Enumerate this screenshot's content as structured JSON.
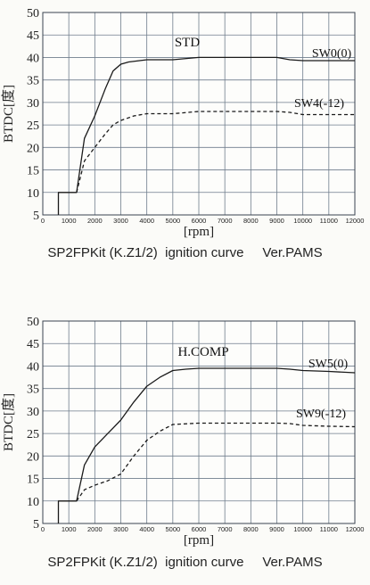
{
  "chart_data": [
    {
      "type": "line",
      "title": "STD",
      "xlabel": "[rpm]",
      "ylabel": "BTDC[度]",
      "xlim": [
        0,
        12000
      ],
      "ylim": [
        5,
        50
      ],
      "xticks": [
        "0",
        "1000",
        "2000",
        "3000",
        "4000",
        "5000",
        "6000",
        "7000",
        "8000",
        "9000",
        "10000",
        "11000",
        "12000"
      ],
      "yticks": [
        "5",
        "10",
        "15",
        "20",
        "25",
        "30",
        "35",
        "40",
        "45",
        "50"
      ],
      "grid": true,
      "caption": "SP2FPKit (K.Z1/2)  ignition curve     Ver.PAMS",
      "series": [
        {
          "name": "SW0(0)",
          "style": "solid",
          "x": [
            600,
            600,
            1300,
            1600,
            2000,
            2400,
            2700,
            3000,
            3300,
            4000,
            5000,
            6000,
            7000,
            8000,
            9000,
            9500,
            10000,
            11000,
            12000
          ],
          "y": [
            5,
            10,
            10,
            22,
            27,
            33,
            37,
            38.5,
            39,
            39.5,
            39.5,
            40,
            40,
            40,
            40,
            39.5,
            39.3,
            39.3,
            39.3
          ]
        },
        {
          "name": "SW4(-12)",
          "style": "dashed",
          "x": [
            1300,
            1600,
            2000,
            2400,
            2700,
            3000,
            3500,
            4000,
            5000,
            6000,
            7000,
            8000,
            9000,
            9500,
            10000,
            11000,
            12000
          ],
          "y": [
            10,
            17,
            20,
            23,
            25,
            26,
            27,
            27.5,
            27.5,
            28,
            28,
            28,
            28,
            27.8,
            27.3,
            27.3,
            27.3
          ]
        }
      ]
    },
    {
      "type": "line",
      "title": "H.COMP",
      "xlabel": "[rpm]",
      "ylabel": "BTDC[度]",
      "xlim": [
        0,
        12000
      ],
      "ylim": [
        5,
        50
      ],
      "xticks": [
        "0",
        "1000",
        "2000",
        "3000",
        "4000",
        "5000",
        "6000",
        "7000",
        "8000",
        "9000",
        "10000",
        "11000",
        "12000"
      ],
      "yticks": [
        "5",
        "10",
        "15",
        "20",
        "25",
        "30",
        "35",
        "40",
        "45",
        "50"
      ],
      "grid": true,
      "caption": "SP2FPKit (K.Z1/2)  ignition curve     Ver.PAMS",
      "series": [
        {
          "name": "SW5(0)",
          "style": "solid",
          "x": [
            600,
            600,
            1300,
            1600,
            2000,
            2500,
            3000,
            3500,
            4000,
            4500,
            5000,
            5500,
            6000,
            7000,
            8000,
            9000,
            9500,
            10000,
            11000,
            12000
          ],
          "y": [
            5,
            10,
            10,
            18,
            22,
            25,
            28,
            32,
            35.5,
            37.5,
            39,
            39.3,
            39.5,
            39.5,
            39.5,
            39.5,
            39.3,
            39,
            38.8,
            38.5
          ]
        },
        {
          "name": "SW9(-12)",
          "style": "dashed",
          "x": [
            1300,
            1600,
            2000,
            2500,
            3000,
            3500,
            4000,
            4500,
            5000,
            6000,
            7000,
            8000,
            9000,
            9500,
            10000,
            11000,
            12000
          ],
          "y": [
            10,
            12.5,
            13.5,
            14.5,
            16,
            20,
            23.5,
            25.5,
            27,
            27.3,
            27.3,
            27.3,
            27.3,
            27.2,
            26.8,
            26.6,
            26.5
          ]
        }
      ]
    }
  ]
}
